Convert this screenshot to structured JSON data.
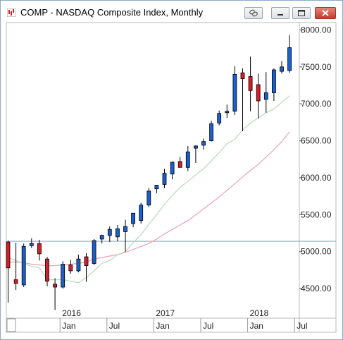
{
  "window": {
    "title": "COMP - NASDAQ Composite Index, Monthly",
    "icons": [
      "chart-app-icon",
      "link-icon",
      "minimize-icon",
      "maximize-icon",
      "close-icon"
    ]
  },
  "chart_data": {
    "type": "candlestick",
    "title": "COMP - NASDAQ Composite Index, Monthly",
    "y_ticks": [
      "8000.00",
      "7500.00",
      "7000.00",
      "6500.00",
      "6000.00",
      "5500.00",
      "5000.00",
      "4500.00"
    ],
    "y_tick_values": [
      8000,
      7500,
      7000,
      6500,
      6000,
      5500,
      5000,
      4500
    ],
    "ylim": [
      4100,
      8100
    ],
    "x_year_labels": [
      "2016",
      "2017",
      "2018"
    ],
    "x_month_labels": [
      "Jan",
      "Jul",
      "Jan",
      "Jul",
      "Jan",
      "Jul"
    ],
    "x_month_label_index": [
      7,
      13,
      19,
      25,
      31,
      37
    ],
    "x_year_label_index": [
      7,
      19,
      31
    ],
    "horizontal_line": 5140,
    "colors": {
      "up": "#1a5fd0",
      "down": "#d41e2a",
      "ma_short": "#b4dcb4",
      "ma_long": "#f0a0b4",
      "hline": "#6fb4e8"
    },
    "candles": [
      {
        "o": 5130,
        "h": 5150,
        "l": 4310,
        "c": 4780
      },
      {
        "o": 4620,
        "h": 5120,
        "l": 4480,
        "c": 4570
      },
      {
        "o": 4550,
        "h": 5110,
        "l": 4520,
        "c": 5070
      },
      {
        "o": 5080,
        "h": 5180,
        "l": 5050,
        "c": 5110
      },
      {
        "o": 5110,
        "h": 5160,
        "l": 4880,
        "c": 4970
      },
      {
        "o": 4900,
        "h": 4930,
        "l": 4530,
        "c": 4600
      },
      {
        "o": 4560,
        "h": 4640,
        "l": 4210,
        "c": 4520
      },
      {
        "o": 4520,
        "h": 4870,
        "l": 4500,
        "c": 4830
      },
      {
        "o": 4820,
        "h": 4890,
        "l": 4700,
        "c": 4740
      },
      {
        "o": 4740,
        "h": 4960,
        "l": 4720,
        "c": 4900
      },
      {
        "o": 4930,
        "h": 4980,
        "l": 4590,
        "c": 4810
      },
      {
        "o": 4840,
        "h": 5170,
        "l": 4820,
        "c": 5150
      },
      {
        "o": 5170,
        "h": 5230,
        "l": 5110,
        "c": 5220
      },
      {
        "o": 5220,
        "h": 5340,
        "l": 5130,
        "c": 5300
      },
      {
        "o": 5200,
        "h": 5360,
        "l": 5140,
        "c": 5310
      },
      {
        "o": 5270,
        "h": 5430,
        "l": 5000,
        "c": 5340
      },
      {
        "o": 5380,
        "h": 5520,
        "l": 5330,
        "c": 5520
      },
      {
        "o": 5420,
        "h": 5660,
        "l": 5380,
        "c": 5630
      },
      {
        "o": 5630,
        "h": 5860,
        "l": 5600,
        "c": 5820
      },
      {
        "o": 5850,
        "h": 5900,
        "l": 5790,
        "c": 5900
      },
      {
        "o": 5910,
        "h": 6120,
        "l": 5860,
        "c": 6060
      },
      {
        "o": 6050,
        "h": 6220,
        "l": 5980,
        "c": 6210
      },
      {
        "o": 6220,
        "h": 6280,
        "l": 6150,
        "c": 6140
      },
      {
        "o": 6140,
        "h": 6430,
        "l": 6090,
        "c": 6350
      },
      {
        "o": 6400,
        "h": 6440,
        "l": 6200,
        "c": 6430
      },
      {
        "o": 6440,
        "h": 6530,
        "l": 6380,
        "c": 6490
      },
      {
        "o": 6500,
        "h": 6770,
        "l": 6490,
        "c": 6730
      },
      {
        "o": 6740,
        "h": 6910,
        "l": 6710,
        "c": 6870
      },
      {
        "o": 6880,
        "h": 6990,
        "l": 6810,
        "c": 6900
      },
      {
        "o": 6900,
        "h": 7510,
        "l": 6850,
        "c": 7400
      },
      {
        "o": 7420,
        "h": 7480,
        "l": 6630,
        "c": 7340
      },
      {
        "o": 7370,
        "h": 7640,
        "l": 6900,
        "c": 7180
      },
      {
        "o": 7260,
        "h": 7410,
        "l": 6800,
        "c": 7040
      },
      {
        "o": 7060,
        "h": 7430,
        "l": 6880,
        "c": 7150
      },
      {
        "o": 7150,
        "h": 7480,
        "l": 7040,
        "c": 7460
      },
      {
        "o": 7440,
        "h": 7580,
        "l": 7410,
        "c": 7500
      },
      {
        "o": 7450,
        "h": 7930,
        "l": 7420,
        "c": 7760
      }
    ],
    "ma_short": [
      4920,
      4880,
      4840,
      4800,
      4780,
      4620,
      4620,
      4620,
      4600,
      4580,
      4650,
      4740,
      4840,
      4880,
      4960,
      5000,
      5120,
      5230,
      5370,
      5500,
      5640,
      5760,
      5870,
      5950,
      6040,
      6120,
      6230,
      6340,
      6460,
      6520,
      6650,
      6740,
      6810,
      6880,
      6930,
      7020,
      7110
    ],
    "ma_long": [
      4860,
      4860,
      4850,
      4830,
      4820,
      4810,
      4810,
      4820,
      4830,
      4840,
      4860,
      4900,
      4920,
      4940,
      4960,
      4990,
      5030,
      5070,
      5110,
      5170,
      5240,
      5300,
      5360,
      5420,
      5500,
      5580,
      5660,
      5740,
      5830,
      5920,
      6010,
      6100,
      6180,
      6280,
      6380,
      6490,
      6620
    ]
  }
}
